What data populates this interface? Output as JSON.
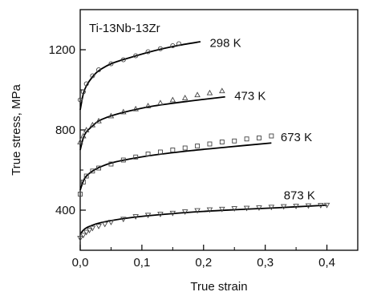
{
  "chart_data": {
    "type": "scatter",
    "title": "",
    "xlabel": "True strain",
    "ylabel": "True stress, MPa",
    "xlim": [
      0.0,
      0.45
    ],
    "ylim": [
      200,
      1400
    ],
    "x_ticks": [
      0.0,
      0.1,
      0.2,
      0.3,
      0.4
    ],
    "x_tick_labels": [
      "0,0",
      "0,1",
      "0,2",
      "0,3",
      "0,4"
    ],
    "y_ticks": [
      400,
      800,
      1200
    ],
    "y_tick_labels": [
      "400",
      "800",
      "1200"
    ],
    "grid": false,
    "legend": "none",
    "annotation": "Ti-13Nb-13Zr",
    "series": [
      {
        "name": "298 K",
        "marker": "circle",
        "fit": {
          "x": [
            0.0,
            0.005,
            0.01,
            0.02,
            0.03,
            0.05,
            0.08,
            0.12,
            0.16,
            0.195
          ],
          "y": [
            900,
            980,
            1020,
            1065,
            1095,
            1130,
            1160,
            1195,
            1222,
            1240
          ]
        },
        "points": {
          "x": [
            0.0,
            0.005,
            0.01,
            0.02,
            0.03,
            0.05,
            0.07,
            0.09,
            0.11,
            0.13,
            0.15,
            0.16
          ],
          "y": [
            950,
            990,
            1030,
            1070,
            1100,
            1130,
            1150,
            1170,
            1190,
            1205,
            1220,
            1230
          ]
        }
      },
      {
        "name": "473 K",
        "marker": "triangle-up",
        "fit": {
          "x": [
            0.0,
            0.005,
            0.01,
            0.02,
            0.03,
            0.05,
            0.08,
            0.12,
            0.18,
            0.235
          ],
          "y": [
            700,
            760,
            790,
            820,
            845,
            870,
            895,
            920,
            945,
            965
          ]
        },
        "points": {
          "x": [
            0.0,
            0.005,
            0.01,
            0.02,
            0.03,
            0.05,
            0.07,
            0.09,
            0.11,
            0.13,
            0.15,
            0.17,
            0.19,
            0.21,
            0.23
          ],
          "y": [
            740,
            770,
            800,
            825,
            845,
            870,
            890,
            905,
            920,
            935,
            950,
            960,
            975,
            985,
            995
          ]
        }
      },
      {
        "name": "673 K",
        "marker": "square",
        "fit": {
          "x": [
            0.0,
            0.005,
            0.01,
            0.02,
            0.03,
            0.05,
            0.08,
            0.12,
            0.18,
            0.24,
            0.31
          ],
          "y": [
            500,
            545,
            570,
            595,
            612,
            635,
            655,
            675,
            697,
            715,
            735
          ]
        },
        "points": {
          "x": [
            0.0,
            0.005,
            0.01,
            0.02,
            0.03,
            0.05,
            0.07,
            0.09,
            0.11,
            0.13,
            0.15,
            0.17,
            0.19,
            0.21,
            0.23,
            0.25,
            0.27,
            0.29,
            0.31
          ],
          "y": [
            480,
            540,
            570,
            595,
            610,
            630,
            650,
            665,
            680,
            690,
            700,
            710,
            720,
            730,
            740,
            745,
            755,
            760,
            770
          ]
        }
      },
      {
        "name": "873 K",
        "marker": "triangle-down",
        "fit": {
          "x": [
            0.0,
            0.005,
            0.01,
            0.02,
            0.03,
            0.05,
            0.08,
            0.12,
            0.18,
            0.25,
            0.32,
            0.4
          ],
          "y": [
            280,
            300,
            312,
            325,
            335,
            348,
            362,
            375,
            390,
            402,
            412,
            425
          ]
        },
        "points": {
          "x": [
            0.0,
            0.005,
            0.01,
            0.015,
            0.02,
            0.03,
            0.04,
            0.05,
            0.07,
            0.09,
            0.11,
            0.13,
            0.15,
            0.17,
            0.19,
            0.21,
            0.23,
            0.25,
            0.27,
            0.29,
            0.31,
            0.33,
            0.35,
            0.37,
            0.39,
            0.4
          ],
          "y": [
            260,
            275,
            290,
            300,
            310,
            320,
            330,
            340,
            355,
            368,
            375,
            380,
            385,
            392,
            398,
            402,
            405,
            408,
            410,
            412,
            415,
            418,
            420,
            422,
            424,
            425
          ]
        }
      }
    ]
  }
}
